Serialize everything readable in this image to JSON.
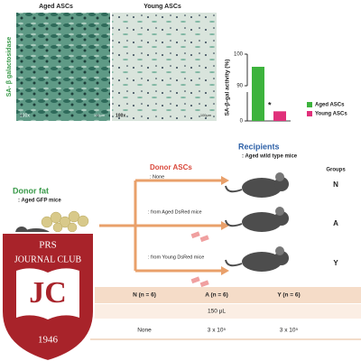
{
  "micrographs": {
    "stain_label": "SA- β galactosidase",
    "aged_title": "Aged ASCs",
    "young_title": "Young ASCs",
    "aged_mag": "100x",
    "young_mag": "100x",
    "aged_scale": "100μm",
    "young_scale": "100μm"
  },
  "chart_data": {
    "type": "bar",
    "ylabel": "SA-β-gal activity (%)",
    "categories": [
      "Aged ASCs",
      "Young ASCs"
    ],
    "values": [
      96,
      30
    ],
    "colors": [
      "#3db33d",
      "#e0307a"
    ],
    "ylim": [
      0,
      100
    ],
    "yticks": [
      0,
      90,
      100
    ],
    "axis_break": 90,
    "annotation": "*",
    "legend": "right"
  },
  "diagram": {
    "donor_fat": "Donor fat",
    "donor_fat_sub": ": Aged GFP mice",
    "donor_ascs": "Donor ASCs",
    "branches": [
      ": None",
      ": from Aged DsRed mice",
      ": from Young DsRed mice"
    ],
    "recipients": "Recipients",
    "recipients_sub": ": Aged wild type mice",
    "groups_title": "Groups",
    "groups": [
      "N",
      "A",
      "Y"
    ]
  },
  "table": {
    "header": [
      "N (n = 6)",
      "A (n = 6)",
      "Y (n = 6)"
    ],
    "volume": "150 μL",
    "rows": [
      [
        "None",
        "3 x 10⁵",
        "3 x 10⁵"
      ]
    ]
  },
  "logo": {
    "top": "PRS",
    "name": "JOURNAL CLUB",
    "initials": "JC",
    "year": "1946"
  }
}
